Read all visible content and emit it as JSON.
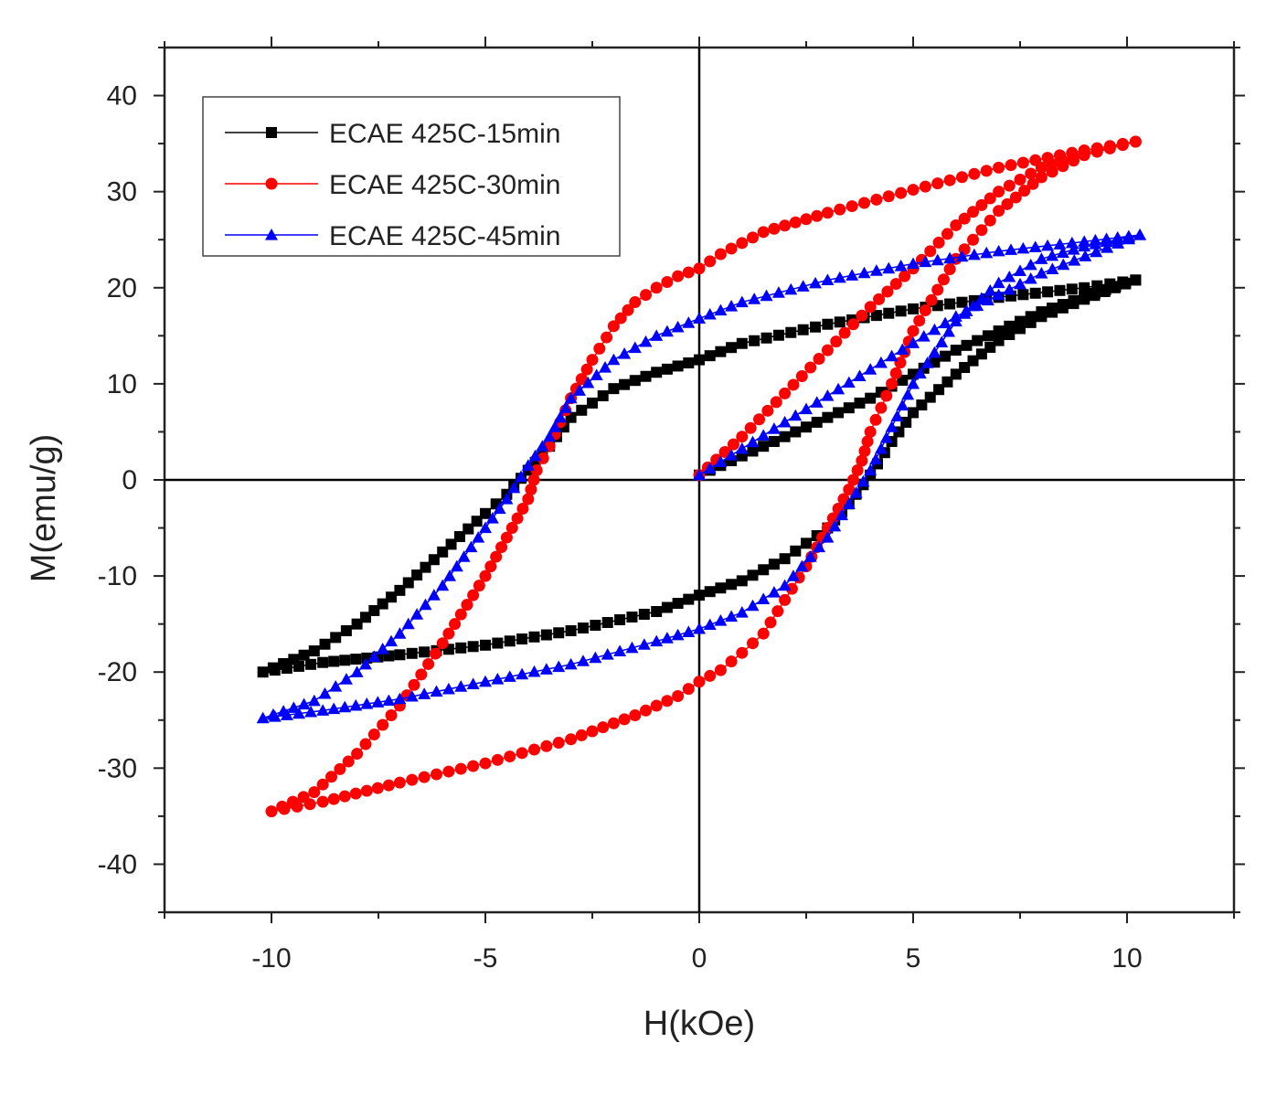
{
  "chart_data": {
    "type": "line",
    "title": "",
    "xlabel": "H(kOe)",
    "ylabel": "M(emu/g)",
    "xlim": [
      -12.5,
      12.5
    ],
    "ylim": [
      -45,
      45
    ],
    "xticks": [
      -10,
      -5,
      0,
      5,
      10
    ],
    "yticks": [
      -40,
      -30,
      -20,
      -10,
      0,
      10,
      20,
      30,
      40
    ],
    "grid": false,
    "legend_position": "top-left",
    "colors": {
      "axes": "#222222",
      "zero_lines": "#000000"
    },
    "series": [
      {
        "name": "ECAE 425C-15min",
        "color": "#000000",
        "marker": "square",
        "x": [
          0.0,
          2.0,
          4.0,
          6.0,
          8.0,
          9.5,
          10.2,
          9.0,
          7.0,
          5.0,
          3.0,
          1.0,
          0.0,
          -1.0,
          -2.0,
          -3.0,
          -3.5,
          -4.0,
          -4.5,
          -5.0,
          -6.0,
          -7.0,
          -8.0,
          -9.0,
          -10.2,
          -8.8,
          -7.0,
          -5.0,
          -3.0,
          -1.0,
          0.0,
          1.0,
          2.0,
          3.0,
          3.5,
          4.0,
          4.5,
          5.0,
          6.0,
          7.0,
          8.0,
          9.0,
          10.2
        ],
        "y": [
          0.5,
          4.5,
          8.5,
          13.5,
          17.5,
          19.8,
          20.8,
          20.0,
          19.0,
          17.8,
          16.2,
          14.2,
          12.5,
          11.2,
          9.5,
          6.5,
          3.5,
          1.0,
          -1.5,
          -3.5,
          -7.5,
          -11.5,
          -15.0,
          -17.8,
          -20.0,
          -19.0,
          -18.2,
          -17.2,
          -15.7,
          -13.7,
          -12.0,
          -10.5,
          -8.2,
          -5.0,
          -2.5,
          0.5,
          4.0,
          7.0,
          11.0,
          14.5,
          17.0,
          18.8,
          20.8
        ]
      },
      {
        "name": "ECAE 425C-30min",
        "color": "#ff0000",
        "marker": "circle",
        "x": [
          0.0,
          1.0,
          2.0,
          3.0,
          4.0,
          5.0,
          6.0,
          7.0,
          8.0,
          9.0,
          10.2,
          9.0,
          7.0,
          5.0,
          3.0,
          1.5,
          0.5,
          0.0,
          -0.5,
          -1.0,
          -1.5,
          -2.0,
          -2.5,
          -3.0,
          -3.5,
          -3.8,
          -4.0,
          -4.5,
          -5.0,
          -6.0,
          -7.0,
          -8.0,
          -9.0,
          -10.0,
          -8.8,
          -7.0,
          -5.0,
          -3.0,
          -1.5,
          -0.5,
          0.0,
          0.5,
          1.0,
          1.5,
          2.0,
          2.5,
          3.0,
          3.5,
          3.8,
          4.0,
          4.5,
          5.0,
          6.0,
          7.0,
          8.0,
          9.0,
          10.2
        ],
        "y": [
          0.5,
          4.5,
          9.0,
          13.5,
          18.0,
          22.0,
          26.5,
          30.0,
          32.5,
          34.0,
          35.2,
          34.3,
          32.5,
          30.2,
          27.8,
          25.8,
          23.5,
          22.0,
          21.2,
          20.0,
          18.5,
          16.0,
          12.5,
          8.5,
          3.5,
          1.0,
          -2.0,
          -6.0,
          -10.0,
          -17.0,
          -23.5,
          -28.5,
          -32.5,
          -34.5,
          -33.5,
          -31.5,
          -29.5,
          -27.0,
          -24.5,
          -22.5,
          -21.0,
          -19.8,
          -18.0,
          -16.0,
          -12.5,
          -9.0,
          -5.0,
          -1.0,
          2.0,
          5.0,
          10.0,
          15.5,
          23.0,
          28.0,
          31.5,
          33.8,
          35.2
        ]
      },
      {
        "name": "ECAE 425C-45min",
        "color": "#0000ff",
        "marker": "triangle",
        "x": [
          0.0,
          2.0,
          4.0,
          6.0,
          8.0,
          10.3,
          9.0,
          7.0,
          5.0,
          3.0,
          1.0,
          0.0,
          -1.0,
          -2.0,
          -3.0,
          -3.5,
          -4.0,
          -4.5,
          -5.0,
          -6.0,
          -7.0,
          -8.0,
          -9.0,
          -10.2,
          -8.8,
          -7.0,
          -5.0,
          -3.0,
          -1.0,
          0.0,
          1.0,
          2.0,
          3.0,
          3.5,
          4.0,
          4.5,
          5.0,
          6.0,
          7.0,
          8.0,
          9.0,
          10.3
        ],
        "y": [
          0.5,
          6.0,
          11.5,
          17.0,
          21.5,
          25.5,
          24.8,
          23.8,
          22.5,
          20.8,
          18.5,
          16.8,
          15.0,
          12.5,
          8.5,
          4.5,
          1.5,
          -2.0,
          -5.0,
          -11.0,
          -16.0,
          -20.0,
          -23.0,
          -24.8,
          -24.0,
          -22.8,
          -21.0,
          -19.2,
          -16.8,
          -15.5,
          -13.8,
          -11.0,
          -6.0,
          -2.5,
          1.0,
          5.5,
          10.0,
          16.5,
          20.5,
          23.0,
          24.3,
          25.5
        ]
      }
    ]
  }
}
